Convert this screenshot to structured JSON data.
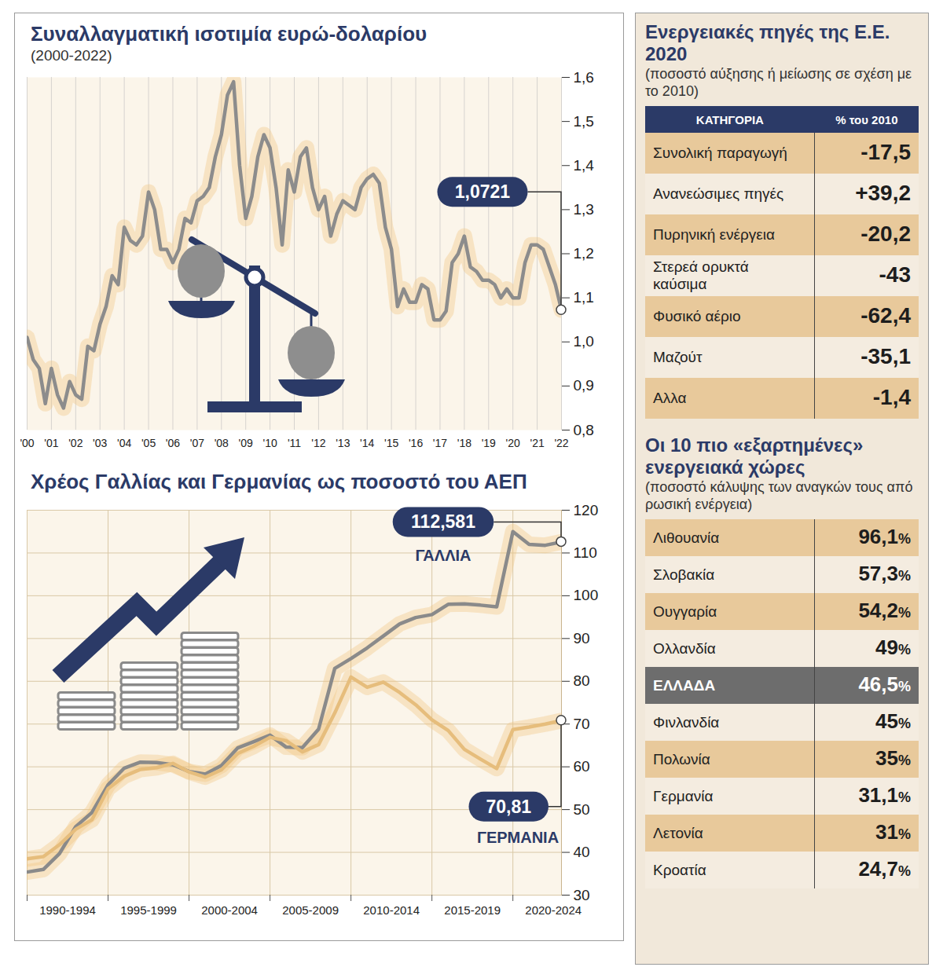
{
  "chart_data": [
    {
      "type": "line",
      "title": "Συναλλαγματική ισοτιμία ευρώ-δολαρίου",
      "subtitle": "(2000-2022)",
      "color": "#8c8c8c",
      "x": [
        2000,
        2000.25,
        2000.5,
        2000.75,
        2001,
        2001.25,
        2001.5,
        2001.75,
        2002,
        2002.25,
        2002.5,
        2002.75,
        2003,
        2003.25,
        2003.5,
        2003.75,
        2004,
        2004.25,
        2004.5,
        2004.75,
        2005,
        2005.25,
        2005.5,
        2005.75,
        2006,
        2006.25,
        2006.5,
        2006.75,
        2007,
        2007.25,
        2007.5,
        2007.75,
        2008,
        2008.25,
        2008.5,
        2008.75,
        2009,
        2009.25,
        2009.5,
        2009.75,
        2010,
        2010.25,
        2010.5,
        2010.75,
        2011,
        2011.25,
        2011.5,
        2011.75,
        2012,
        2012.25,
        2012.5,
        2012.75,
        2013,
        2013.25,
        2013.5,
        2013.75,
        2014,
        2014.25,
        2014.5,
        2014.75,
        2015,
        2015.25,
        2015.5,
        2015.75,
        2016,
        2016.25,
        2016.5,
        2016.75,
        2017,
        2017.25,
        2017.5,
        2017.75,
        2018,
        2018.25,
        2018.5,
        2018.75,
        2019,
        2019.25,
        2019.5,
        2019.75,
        2020,
        2020.25,
        2020.5,
        2020.75,
        2021,
        2021.25,
        2021.5,
        2021.75,
        2022
      ],
      "values": [
        1.01,
        0.96,
        0.94,
        0.86,
        0.94,
        0.88,
        0.85,
        0.91,
        0.88,
        0.87,
        0.99,
        0.98,
        1.04,
        1.08,
        1.15,
        1.13,
        1.26,
        1.23,
        1.22,
        1.24,
        1.34,
        1.3,
        1.21,
        1.21,
        1.18,
        1.21,
        1.28,
        1.27,
        1.32,
        1.33,
        1.35,
        1.42,
        1.47,
        1.56,
        1.59,
        1.4,
        1.28,
        1.33,
        1.42,
        1.47,
        1.44,
        1.35,
        1.22,
        1.39,
        1.34,
        1.42,
        1.44,
        1.35,
        1.3,
        1.33,
        1.24,
        1.29,
        1.32,
        1.31,
        1.3,
        1.35,
        1.37,
        1.38,
        1.36,
        1.26,
        1.21,
        1.08,
        1.12,
        1.09,
        1.09,
        1.13,
        1.12,
        1.05,
        1.05,
        1.07,
        1.18,
        1.2,
        1.24,
        1.17,
        1.16,
        1.14,
        1.14,
        1.13,
        1.1,
        1.12,
        1.1,
        1.1,
        1.18,
        1.22,
        1.22,
        1.21,
        1.17,
        1.13,
        1.0721
      ],
      "xlim": [
        2000,
        2022
      ],
      "xticks": [
        {
          "value": 2000,
          "label": "'00"
        },
        {
          "value": 2001,
          "label": "'01"
        },
        {
          "value": 2002,
          "label": "'02"
        },
        {
          "value": 2003,
          "label": "'03"
        },
        {
          "value": 2004,
          "label": "'04"
        },
        {
          "value": 2005,
          "label": "'05"
        },
        {
          "value": 2006,
          "label": "'06"
        },
        {
          "value": 2007,
          "label": "'07"
        },
        {
          "value": 2008,
          "label": "'08"
        },
        {
          "value": 2009,
          "label": "'09"
        },
        {
          "value": 2010,
          "label": "'10"
        },
        {
          "value": 2011,
          "label": "'11"
        },
        {
          "value": 2012,
          "label": "'12"
        },
        {
          "value": 2013,
          "label": "'13"
        },
        {
          "value": 2014,
          "label": "'14"
        },
        {
          "value": 2015,
          "label": "'15"
        },
        {
          "value": 2016,
          "label": "'16"
        },
        {
          "value": 2017,
          "label": "'17"
        },
        {
          "value": 2018,
          "label": "'18"
        },
        {
          "value": 2019,
          "label": "'19"
        },
        {
          "value": 2020,
          "label": "'20"
        },
        {
          "value": 2021,
          "label": "'21"
        },
        {
          "value": 2022,
          "label": "'22"
        }
      ],
      "ylim": [
        0.8,
        1.6
      ],
      "yticks": [
        {
          "value": 0.8,
          "label": "0,8"
        },
        {
          "value": 0.9,
          "label": "0,9"
        },
        {
          "value": 1,
          "label": "1,0"
        },
        {
          "value": 1.1,
          "label": "1,1"
        },
        {
          "value": 1.2,
          "label": "1,2"
        },
        {
          "value": 1.3,
          "label": "1,3"
        },
        {
          "value": 1.4,
          "label": "1,4"
        },
        {
          "value": 1.5,
          "label": "1,5"
        },
        {
          "value": 1.6,
          "label": "1,6"
        }
      ],
      "grid": "x",
      "annotations": [
        {
          "text": "1,0721",
          "x": 2022,
          "y": 1.0721
        }
      ]
    },
    {
      "type": "line",
      "title": "Χρέος Γαλλίας και Γερμανίας ως ποσοστό του ΑΕΠ",
      "x": [
        1990,
        1991,
        1992,
        1993,
        1994,
        1995,
        1996,
        1997,
        1998,
        1999,
        2000,
        2001,
        2002,
        2003,
        2004,
        2005,
        2006,
        2007,
        2008,
        2009,
        2010,
        2011,
        2012,
        2013,
        2014,
        2015,
        2016,
        2017,
        2018,
        2019,
        2020,
        2021,
        2022,
        2023
      ],
      "series": [
        {
          "name": "ΓΑΛΛΙΑ",
          "color": "#8a8a8a",
          "values": [
            35.4,
            36.0,
            39.7,
            46.0,
            49.3,
            55.8,
            59.7,
            61.1,
            61.0,
            60.5,
            58.9,
            58.3,
            60.3,
            64.4,
            65.9,
            67.4,
            64.6,
            64.5,
            68.8,
            83.0,
            85.3,
            87.8,
            90.6,
            93.4,
            94.9,
            95.6,
            98.0,
            98.1,
            97.8,
            97.4,
            115.0,
            112.0,
            111.8,
            112.581
          ]
        },
        {
          "name": "ΓΕΡΜΑΝΙΑ",
          "color": "#e6bd7c",
          "values": [
            38.5,
            39.0,
            41.8,
            45.4,
            47.6,
            54.9,
            57.8,
            59.4,
            59.8,
            60.8,
            58.8,
            57.6,
            59.3,
            63.1,
            64.8,
            66.9,
            66.1,
            63.5,
            65.2,
            72.6,
            81.0,
            78.6,
            79.8,
            77.4,
            74.5,
            71.0,
            68.5,
            64.1,
            61.8,
            59.6,
            68.7,
            69.3,
            70.0,
            70.81
          ]
        }
      ],
      "xlim": [
        1990,
        2023
      ],
      "xticks": [
        {
          "value": 1990,
          "label": "1990-1994"
        },
        {
          "value": 1995,
          "label": "1995-1999"
        },
        {
          "value": 2000,
          "label": "2000-2004"
        },
        {
          "value": 2005,
          "label": "2005-2009"
        },
        {
          "value": 2010,
          "label": "2010-2014"
        },
        {
          "value": 2015,
          "label": "2015-2019"
        },
        {
          "value": 2020,
          "label": "2020-2024"
        }
      ],
      "ylim": [
        30,
        120
      ],
      "yticks": [
        30,
        40,
        50,
        60,
        70,
        80,
        90,
        100,
        110,
        120
      ],
      "grid": true,
      "annotations": [
        {
          "text": "112,581",
          "x": 2023,
          "y": 112.581
        },
        {
          "text": "70,81",
          "x": 2023,
          "y": 70.81
        }
      ]
    }
  ],
  "tables": [
    {
      "title": "Ενεργειακές πηγές της Ε.Ε. 2020",
      "subtitle": "(ποσοστό αύξησης ή μείωσης σε σχέση με το 2010)",
      "header": [
        "ΚΑΤΗΓΟΡΙΑ",
        "% του 2010"
      ],
      "rows": [
        {
          "label": "Συνολική παραγωγή",
          "value": "-17,5"
        },
        {
          "label": "Ανανεώσιμες πηγές",
          "value": "+39,2"
        },
        {
          "label": "Πυρηνική ενέργεια",
          "value": "-20,2"
        },
        {
          "label": "Στερεά ορυκτά καύσιμα",
          "value": "-43"
        },
        {
          "label": "Φυσικό αέριο",
          "value": "-62,4"
        },
        {
          "label": "Μαζούτ",
          "value": "-35,1"
        },
        {
          "label": "Αλλα",
          "value": "-1,4"
        }
      ]
    },
    {
      "title": "Οι 10 πιο «εξαρτημένες» ενεργειακά χώρες",
      "subtitle": "(ποσοστό κάλυψης των αναγκών τους από ρωσική ενέργεια)",
      "rows": [
        {
          "label": "Λιθουανία",
          "value": "96,1%"
        },
        {
          "label": "Σλοβακία",
          "value": "57,3%"
        },
        {
          "label": "Ουγγαρία",
          "value": "54,2%"
        },
        {
          "label": "Ολλανδία",
          "value": "49%"
        },
        {
          "label": "ΕΛΛΑΔΑ",
          "value": "46,5%",
          "highlight": true
        },
        {
          "label": "Φινλανδία",
          "value": "45%"
        },
        {
          "label": "Πολωνία",
          "value": "35%"
        },
        {
          "label": "Γερμανία",
          "value": "31,1%"
        },
        {
          "label": "Λετονία",
          "value": "31%"
        },
        {
          "label": "Κροατία",
          "value": "24,7%"
        }
      ]
    }
  ]
}
